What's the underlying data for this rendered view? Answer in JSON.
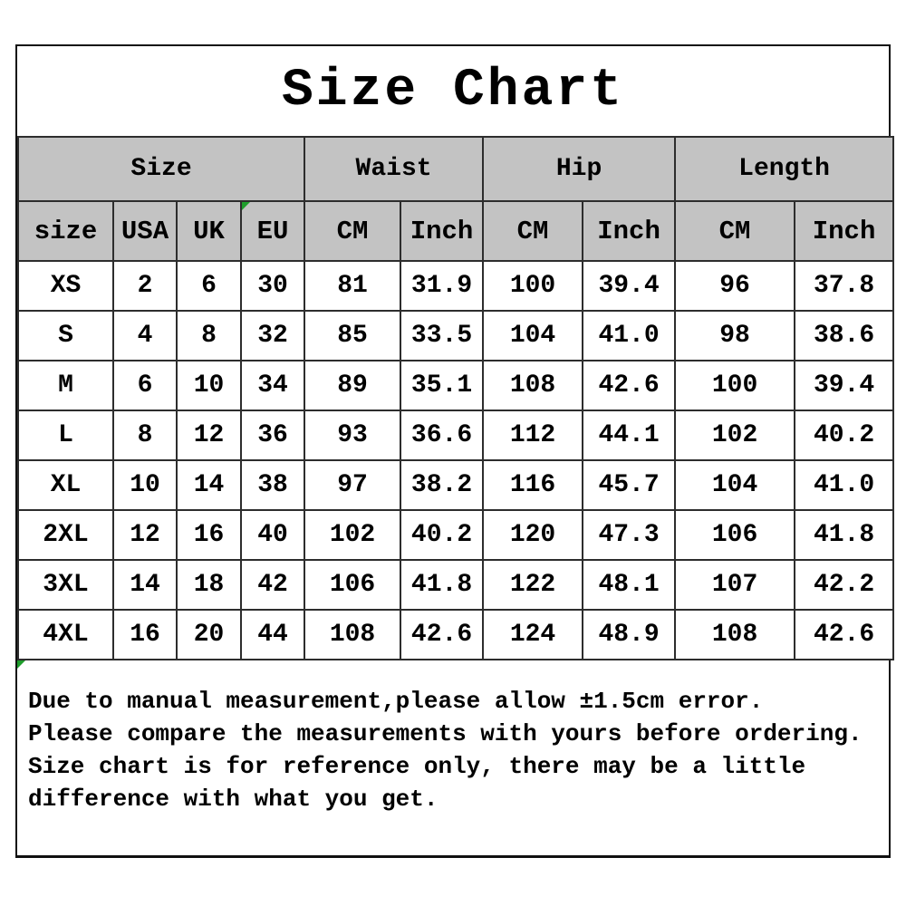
{
  "title": "Size Chart",
  "table": {
    "group_headers": [
      {
        "label": "Size",
        "span": 4
      },
      {
        "label": "Waist",
        "span": 2
      },
      {
        "label": "Hip",
        "span": 2
      },
      {
        "label": "Length",
        "span": 2
      }
    ],
    "sub_headers": [
      "size",
      "USA",
      "UK",
      "EU",
      "CM",
      "Inch",
      "CM",
      "Inch",
      "CM",
      "Inch"
    ],
    "rows": [
      [
        "XS",
        "2",
        "6",
        "30",
        "81",
        "31.9",
        "100",
        "39.4",
        "96",
        "37.8"
      ],
      [
        "S",
        "4",
        "8",
        "32",
        "85",
        "33.5",
        "104",
        "41.0",
        "98",
        "38.6"
      ],
      [
        "M",
        "6",
        "10",
        "34",
        "89",
        "35.1",
        "108",
        "42.6",
        "100",
        "39.4"
      ],
      [
        "L",
        "8",
        "12",
        "36",
        "93",
        "36.6",
        "112",
        "44.1",
        "102",
        "40.2"
      ],
      [
        "XL",
        "10",
        "14",
        "38",
        "97",
        "38.2",
        "116",
        "45.7",
        "104",
        "41.0"
      ],
      [
        "2XL",
        "12",
        "16",
        "40",
        "102",
        "40.2",
        "120",
        "47.3",
        "106",
        "41.8"
      ],
      [
        "3XL",
        "14",
        "18",
        "42",
        "106",
        "41.8",
        "122",
        "48.1",
        "107",
        "42.2"
      ],
      [
        "4XL",
        "16",
        "20",
        "44",
        "108",
        "42.6",
        "124",
        "48.9",
        "108",
        "42.6"
      ]
    ]
  },
  "footer_note": {
    "lines": [
      "Due to manual measurement,please allow ±1.5cm error.",
      "Please compare the measurements with yours before ordering.",
      "Size chart is for reference only, there may be a little",
      "difference with what you get."
    ]
  },
  "icons": {
    "corner_markers": [
      "eu-header-cell-marker",
      "footer-note-marker"
    ]
  },
  "colors": {
    "header_bg": "#c3c3c3",
    "grid_border": "#2d2d2d",
    "outer_border": "#101010",
    "marker_green": "#1f9e2c",
    "text": "#000000",
    "background": "#ffffff"
  },
  "chart_data": {
    "type": "table",
    "title": "Size Chart",
    "column_groups": [
      {
        "label": "Size",
        "columns": [
          "size",
          "USA",
          "UK",
          "EU"
        ]
      },
      {
        "label": "Waist",
        "columns": [
          "CM",
          "Inch"
        ]
      },
      {
        "label": "Hip",
        "columns": [
          "CM",
          "Inch"
        ]
      },
      {
        "label": "Length",
        "columns": [
          "CM",
          "Inch"
        ]
      }
    ],
    "columns": [
      "size",
      "USA",
      "UK",
      "EU",
      "Waist CM",
      "Waist Inch",
      "Hip CM",
      "Hip Inch",
      "Length CM",
      "Length Inch"
    ],
    "rows": [
      [
        "XS",
        2,
        6,
        30,
        81,
        31.9,
        100,
        39.4,
        96,
        37.8
      ],
      [
        "S",
        4,
        8,
        32,
        85,
        33.5,
        104,
        41.0,
        98,
        38.6
      ],
      [
        "M",
        6,
        10,
        34,
        89,
        35.1,
        108,
        42.6,
        100,
        39.4
      ],
      [
        "L",
        8,
        12,
        36,
        93,
        36.6,
        112,
        44.1,
        102,
        40.2
      ],
      [
        "XL",
        10,
        14,
        38,
        97,
        38.2,
        116,
        45.7,
        104,
        41.0
      ],
      [
        "2XL",
        12,
        16,
        40,
        102,
        40.2,
        120,
        47.3,
        106,
        41.8
      ],
      [
        "3XL",
        14,
        18,
        42,
        106,
        41.8,
        122,
        48.1,
        107,
        42.2
      ],
      [
        "4XL",
        16,
        20,
        44,
        108,
        42.6,
        124,
        48.9,
        108,
        42.6
      ]
    ],
    "note": "Due to manual measurement,please allow ±1.5cm error. Please compare the measurements with yours before ordering. Size chart is for reference only, there may be a little difference with what you get."
  }
}
